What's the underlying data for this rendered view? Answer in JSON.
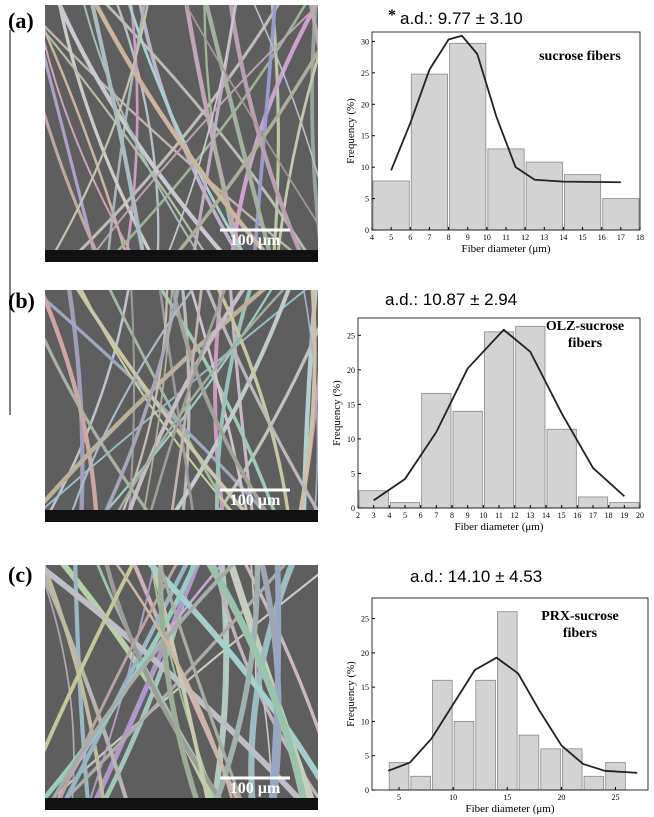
{
  "chart_data": [
    {
      "type": "histogram",
      "panel_label": "(a)",
      "annotation_mark": "*",
      "title": "a.d.: 9.77 ± 3.10",
      "label": "sucrose fibers",
      "image_scale_label": "100 µm",
      "xlabel": "Fiber diameter (μm)",
      "ylabel": "Frequency (%)",
      "bins": [
        4,
        6,
        8,
        10,
        12,
        14,
        16,
        18
      ],
      "values": [
        7.8,
        24.8,
        29.7,
        12.9,
        10.8,
        8.8,
        5.0
      ],
      "color": "#d3d3d3",
      "fit_curve": {
        "x": [
          5,
          6,
          7,
          8,
          8.7,
          9.5,
          10.5,
          11.5,
          12.5,
          14,
          17
        ],
        "values": [
          9.5,
          17,
          25.5,
          30.3,
          30.9,
          28,
          18,
          10,
          8,
          7.7,
          7.6
        ]
      },
      "xlim": [
        4,
        18
      ],
      "xticks": [
        4,
        5,
        6,
        7,
        8,
        9,
        10,
        11,
        12,
        13,
        14,
        15,
        16,
        17,
        18
      ],
      "ylim": [
        0,
        31.5
      ],
      "yticks": [
        0,
        5,
        10,
        15,
        20,
        25,
        30
      ]
    },
    {
      "type": "histogram",
      "panel_label": "(b)",
      "title": "a.d.: 10.87 ± 2.94",
      "label": "OLZ-sucrose fibers",
      "image_scale_label": "100 µm",
      "xlabel": "Fiber diameter (μm)",
      "ylabel": "Frequency (%)",
      "bins": [
        2,
        4,
        6,
        8,
        10,
        12,
        14,
        16,
        18,
        20
      ],
      "values": [
        2.5,
        0.8,
        16.6,
        14,
        25.5,
        26.3,
        11.4,
        1.6,
        0.8
      ],
      "color": "#d3d3d3",
      "fit_curve": {
        "x": [
          3,
          5,
          7,
          9,
          11.3,
          13,
          15,
          17,
          19
        ],
        "values": [
          1.1,
          4.2,
          11,
          20.2,
          25.8,
          22.6,
          13.7,
          5.8,
          1.7
        ]
      },
      "xlim": [
        2,
        20
      ],
      "xticks": [
        2,
        3,
        4,
        5,
        6,
        7,
        8,
        9,
        10,
        11,
        12,
        13,
        14,
        15,
        16,
        17,
        18,
        19,
        20
      ],
      "ylim": [
        0,
        27.5
      ],
      "yticks": [
        0,
        5,
        10,
        15,
        20,
        25
      ]
    },
    {
      "type": "histogram",
      "panel_label": "(c)",
      "title": "a.d.: 14.10 ± 4.53",
      "label": "PRX-sucrose fibers",
      "image_scale_label": "100 µm",
      "xlabel": "Fiber diameter (μm)",
      "ylabel": "Frequency (%)",
      "bins": [
        4,
        6,
        8,
        10,
        12,
        14,
        16,
        18,
        20,
        22,
        24,
        26
      ],
      "values": [
        4,
        2,
        16,
        10,
        16,
        26,
        8,
        6,
        6,
        2,
        4
      ],
      "color": "#d3d3d3",
      "fit_curve": {
        "x": [
          4,
          6,
          8,
          10,
          12,
          14,
          16,
          18,
          20,
          22,
          24,
          27
        ],
        "values": [
          2.8,
          4,
          7.5,
          12.5,
          17.5,
          19.3,
          17,
          11.5,
          6.5,
          3.8,
          2.8,
          2.5
        ]
      },
      "xlim": [
        2.5,
        28
      ],
      "xticks": [
        5,
        10,
        15,
        20,
        25
      ],
      "ylim": [
        0,
        28
      ],
      "yticks": [
        0,
        5,
        10,
        15,
        20,
        25
      ]
    }
  ]
}
